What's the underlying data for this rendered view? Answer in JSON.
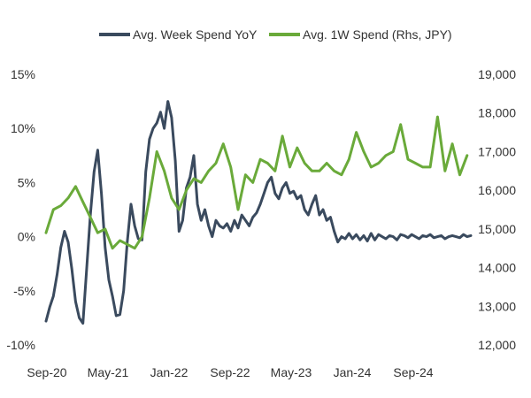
{
  "chart_data": {
    "type": "line",
    "title": "",
    "legend_position": "top-center",
    "grid": false,
    "x_tick_labels": [
      "Sep-20",
      "May-21",
      "Jan-22",
      "Sep-22",
      "May-23",
      "Jan-24",
      "Sep-24"
    ],
    "y_left": {
      "label": "",
      "range": [
        -10,
        15
      ],
      "ticks": [
        -10,
        -5,
        0,
        5,
        10,
        15
      ],
      "tick_labels": [
        "-10%",
        "-5%",
        "0%",
        "5%",
        "10%",
        "15%"
      ]
    },
    "y_right": {
      "label": "",
      "range": [
        12000,
        19000
      ],
      "ticks": [
        12000,
        13000,
        14000,
        15000,
        16000,
        17000,
        18000,
        19000
      ],
      "tick_labels": [
        "12,000",
        "13,000",
        "14,000",
        "15,000",
        "16,000",
        "17,000",
        "18,000",
        "19,000"
      ]
    },
    "series": [
      {
        "name": "Avg. Week Spend YoY",
        "axis": "left",
        "color": "#3a4a5e",
        "x": [
          0,
          0.5,
          1,
          1.5,
          2,
          2.5,
          3,
          3.5,
          4,
          4.5,
          5,
          5.5,
          6,
          6.5,
          7,
          7.5,
          8,
          8.5,
          9,
          9.5,
          10,
          10.5,
          11,
          11.5,
          12,
          12.5,
          13,
          13.5,
          14,
          14.5,
          15,
          15.5,
          16,
          16.5,
          17,
          17.5,
          18,
          18.5,
          19,
          19.5,
          20,
          20.5,
          21,
          21.5,
          22,
          22.5,
          23,
          23.5,
          24,
          24.5,
          25,
          25.5,
          26,
          26.5,
          27,
          27.5,
          28,
          28.5,
          29,
          29.5,
          30,
          30.5,
          31,
          31.5,
          32,
          32.5,
          33,
          33.5,
          34,
          34.5,
          35,
          35.5,
          36,
          36.5,
          37,
          37.5,
          38,
          38.5,
          39,
          39.5,
          40,
          40.5,
          41,
          41.5,
          42,
          42.5,
          43,
          43.5,
          44,
          44.5,
          45,
          45.5,
          46,
          46.5,
          47,
          47.5,
          48,
          48.5,
          49,
          49.5,
          50,
          50.5,
          51,
          51.5,
          52,
          52.5,
          53,
          53.5,
          54,
          54.5,
          55,
          55.5,
          56,
          56.5,
          57,
          57.5
        ],
        "values": [
          -7.8,
          -6.5,
          -5.5,
          -3.5,
          -1,
          0.5,
          -0.5,
          -3,
          -6,
          -7.5,
          -8,
          -3,
          2,
          6,
          8,
          4,
          -1,
          -4,
          -5.5,
          -7.3,
          -7.2,
          -5,
          -0.5,
          3,
          1,
          -0.2,
          -0.3,
          6,
          9,
          10,
          10.5,
          11.5,
          10,
          12.5,
          11,
          7,
          0.5,
          1.5,
          4.5,
          5.5,
          7.5,
          3,
          1.5,
          2.5,
          1,
          0,
          1.5,
          1,
          0.8,
          1.2,
          0.5,
          1.5,
          0.8,
          2,
          1.5,
          1,
          1.8,
          2.2,
          3,
          4,
          5,
          5.5,
          4,
          3.5,
          4.5,
          5,
          4,
          4.2,
          3.5,
          3.8,
          2.5,
          2,
          3,
          3.8,
          2,
          2.5,
          1.5,
          1.8,
          0.5,
          -0.5,
          0,
          -0.2,
          0.3,
          -0.2,
          0.2,
          -0.3,
          0.1,
          -0.4,
          0.3,
          -0.3,
          0.2,
          0,
          -0.2,
          0.1,
          0,
          -0.3,
          0.2,
          0.1,
          -0.1,
          0.2,
          0,
          -0.2,
          0.1,
          0,
          0.2,
          -0.1,
          0,
          0.1,
          -0.2,
          0,
          0.1,
          0,
          -0.1,
          0.2,
          0,
          0.1
        ]
      },
      {
        "name": "Avg. 1W Spend (Rhs, JPY)",
        "axis": "right",
        "color": "#6aaa3a",
        "x": [
          0,
          1,
          2,
          3,
          4,
          5,
          6,
          7,
          8,
          9,
          10,
          11,
          12,
          13,
          14,
          15,
          16,
          17,
          18,
          19,
          20,
          21,
          22,
          23,
          24,
          25,
          26,
          27,
          28,
          29,
          30,
          31,
          32,
          33,
          34,
          35,
          36,
          37,
          38,
          39,
          40,
          41,
          42,
          43,
          44,
          45,
          46,
          47,
          48,
          49,
          50,
          51,
          52,
          53,
          54,
          55,
          56,
          57
        ],
        "values": [
          14900,
          15500,
          15600,
          15800,
          16100,
          15700,
          15300,
          14900,
          15000,
          14500,
          14700,
          14600,
          14500,
          14800,
          15800,
          17000,
          16500,
          15800,
          15500,
          16000,
          16300,
          16200,
          16500,
          16700,
          17200,
          16600,
          15500,
          16400,
          16200,
          16800,
          16700,
          16500,
          17400,
          16600,
          17100,
          16700,
          16500,
          16500,
          16700,
          16500,
          16400,
          16800,
          17500,
          17000,
          16600,
          16700,
          16900,
          17000,
          17700,
          16800,
          16700,
          16600,
          16600,
          17900,
          16500,
          17200,
          16400,
          16900
        ]
      }
    ]
  }
}
